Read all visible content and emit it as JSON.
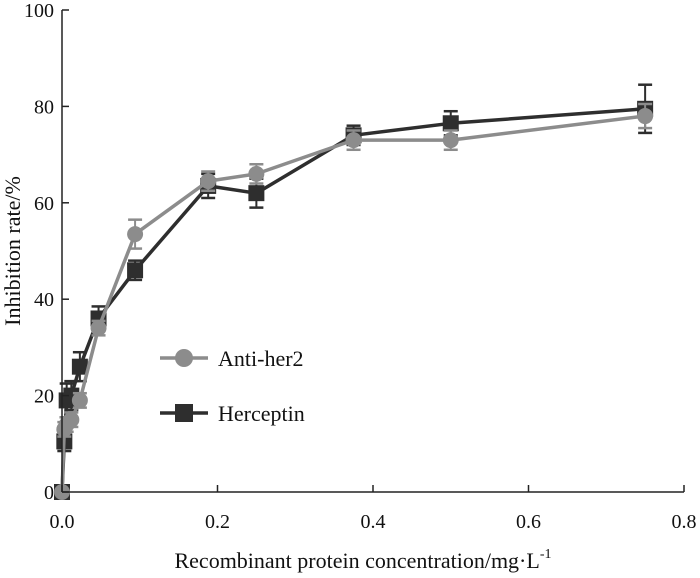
{
  "chart_data": {
    "type": "line",
    "title": "",
    "xlabel": "Recombinant protein concentration/mg·L",
    "xlabel_superscript": "-1",
    "ylabel": "Inhibition rate/%",
    "xlim": [
      0,
      0.8
    ],
    "ylim": [
      0,
      100
    ],
    "x_ticks": [
      "0.0",
      "0.2",
      "0.4",
      "0.6",
      "0.8"
    ],
    "y_ticks": [
      "0",
      "20",
      "40",
      "60",
      "80",
      "100"
    ],
    "x_tick_values": [
      0,
      0.2,
      0.4,
      0.6,
      0.8
    ],
    "y_tick_values": [
      0,
      20,
      40,
      60,
      80,
      100
    ],
    "grid": false,
    "legend_position": "center-left",
    "series": [
      {
        "name": "Anti-her2",
        "marker": "circle",
        "color": "#8c8c8c",
        "x": [
          0,
          0.003,
          0.006,
          0.012,
          0.023,
          0.047,
          0.094,
          0.188,
          0.25,
          0.375,
          0.5,
          0.75
        ],
        "y": [
          0,
          13,
          14,
          15,
          19,
          34,
          53.5,
          64.5,
          66,
          73,
          73,
          78
        ],
        "error": [
          0,
          1.5,
          1.5,
          1.5,
          1.5,
          1.5,
          3,
          2,
          2,
          2,
          2,
          2.5
        ]
      },
      {
        "name": "Herceptin",
        "marker": "square",
        "color": "#2e2e2e",
        "x": [
          0,
          0.003,
          0.006,
          0.012,
          0.023,
          0.047,
          0.094,
          0.188,
          0.25,
          0.375,
          0.5,
          0.75
        ],
        "y": [
          0,
          10.5,
          19,
          20,
          26,
          36,
          46,
          63.5,
          62,
          74,
          76.5,
          79.5
        ],
        "error": [
          0,
          2,
          3.5,
          3,
          3,
          2.5,
          2,
          2.5,
          3,
          2,
          2.5,
          5
        ]
      }
    ]
  }
}
